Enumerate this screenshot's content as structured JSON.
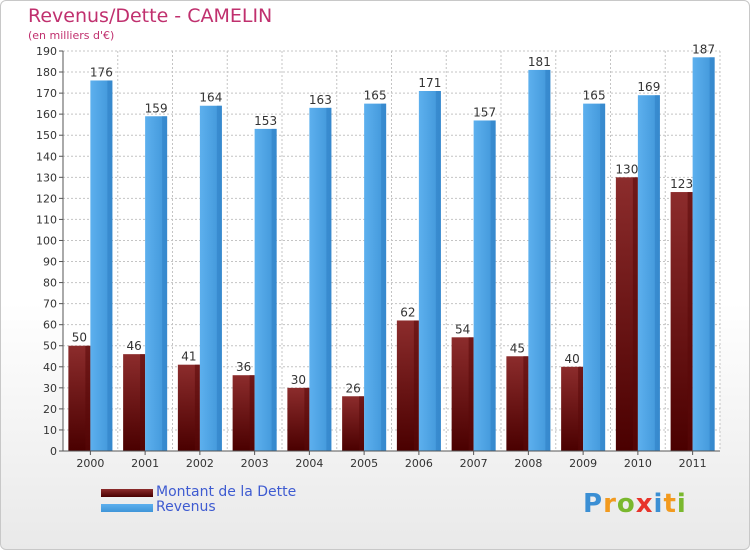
{
  "header": {
    "title": "Revenus/Dette - CAMELIN",
    "subtitle": "(en milliers d'€)"
  },
  "logo": {
    "text": "Proxiti",
    "letters": [
      "P",
      "r",
      "o",
      "x",
      "i",
      "t",
      "i"
    ],
    "colors": [
      "#3b8fd4",
      "#f29a1e",
      "#7ab82e",
      "#e8342b",
      "#3b8fd4",
      "#f29a1e",
      "#7ab82e"
    ]
  },
  "chart_data": {
    "type": "bar",
    "categories": [
      "2000",
      "2001",
      "2002",
      "2003",
      "2004",
      "2005",
      "2006",
      "2007",
      "2008",
      "2009",
      "2010",
      "2011"
    ],
    "series": [
      {
        "name": "Montant de la Dette",
        "values": [
          50,
          46,
          41,
          36,
          30,
          26,
          62,
          54,
          45,
          40,
          130,
          123
        ],
        "color": "#7a1a1a"
      },
      {
        "name": "Revenus",
        "values": [
          176,
          159,
          164,
          153,
          163,
          165,
          171,
          157,
          181,
          165,
          169,
          187
        ],
        "color": "#4ea3e4"
      }
    ],
    "ylim": [
      0,
      190
    ],
    "ytick_step": 10,
    "grid": true,
    "legend": "bottom-left"
  }
}
